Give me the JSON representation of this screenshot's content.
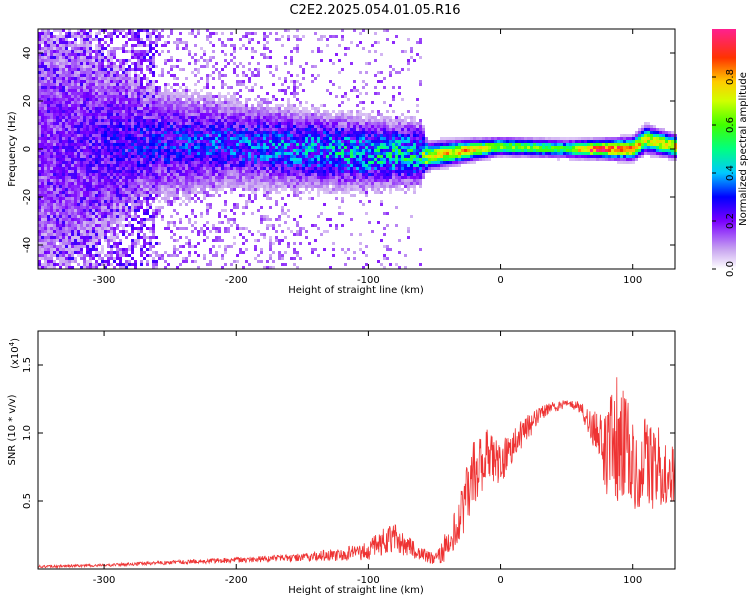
{
  "title": "C2E2.2025.054.01.05.R16",
  "chart_data": [
    {
      "type": "heatmap",
      "xlabel": "Height of straight line (km)",
      "ylabel": "Frequency (Hz)",
      "xlim": [
        -350,
        132
      ],
      "ylim": [
        -50,
        50
      ],
      "xticks": [
        -300,
        -200,
        -100,
        0,
        100
      ],
      "yticks": [
        -40,
        -20,
        0,
        20,
        40
      ],
      "colorbar": {
        "label": "Normalized spectral amplitude",
        "range": [
          0,
          1
        ],
        "ticks": [
          0.0,
          0.2,
          0.4,
          0.6,
          0.8
        ]
      },
      "ridge": [
        {
          "x": -350,
          "freq": 0,
          "amp": 0.15,
          "spread_hz": 40
        },
        {
          "x": -270,
          "freq": 2,
          "amp": 0.25,
          "spread_hz": 14
        },
        {
          "x": -200,
          "freq": 2,
          "amp": 0.3,
          "spread_hz": 10
        },
        {
          "x": -150,
          "freq": 0,
          "amp": 0.35,
          "spread_hz": 9
        },
        {
          "x": -100,
          "freq": -2,
          "amp": 0.4,
          "spread_hz": 8
        },
        {
          "x": -60,
          "freq": -2,
          "amp": 0.45,
          "spread_hz": 7
        },
        {
          "x": -55,
          "freq": -3,
          "amp": 0.7,
          "spread_hz": 3
        },
        {
          "x": -30,
          "freq": -1,
          "amp": 0.8,
          "spread_hz": 2.5
        },
        {
          "x": 0,
          "freq": 1,
          "amp": 0.65,
          "spread_hz": 2
        },
        {
          "x": 50,
          "freq": 0,
          "amp": 0.55,
          "spread_hz": 2
        },
        {
          "x": 70,
          "freq": 0,
          "amp": 0.95,
          "spread_hz": 2
        },
        {
          "x": 100,
          "freq": 0,
          "amp": 0.85,
          "spread_hz": 2.5
        },
        {
          "x": 110,
          "freq": 4,
          "amp": 0.7,
          "spread_hz": 3
        },
        {
          "x": 132,
          "freq": 1,
          "amp": 0.8,
          "spread_hz": 2.5
        }
      ]
    },
    {
      "type": "line",
      "xlabel": "Height of straight line (km)",
      "ylabel": "SNR (10 * v/v)",
      "scale_label": "(x10",
      "scale_exponent": "4",
      "scale_suffix": ")",
      "xlim": [
        -350,
        132
      ],
      "ylim": [
        0,
        1.75
      ],
      "xticks": [
        -300,
        -200,
        -100,
        0,
        100
      ],
      "yticks": [
        0.5,
        1.0,
        1.5
      ],
      "series": [
        {
          "color": "#ee3333",
          "x": [
            -350,
            -300,
            -250,
            -200,
            -150,
            -120,
            -100,
            -90,
            -80,
            -70,
            -60,
            -50,
            -40,
            -30,
            -20,
            -10,
            0,
            10,
            20,
            30,
            40,
            50,
            60,
            70,
            80,
            85,
            90,
            100,
            110,
            120,
            132
          ],
          "y": [
            0.02,
            0.03,
            0.05,
            0.07,
            0.09,
            0.12,
            0.15,
            0.22,
            0.25,
            0.18,
            0.12,
            0.08,
            0.2,
            0.45,
            0.75,
            0.88,
            0.8,
            0.95,
            1.05,
            1.15,
            1.2,
            1.22,
            1.2,
            1.05,
            0.95,
            1.1,
            1.05,
            0.9,
            0.85,
            0.8,
            0.72
          ],
          "noise": [
            0.01,
            0.01,
            0.015,
            0.02,
            0.03,
            0.05,
            0.07,
            0.1,
            0.1,
            0.08,
            0.05,
            0.04,
            0.12,
            0.2,
            0.25,
            0.2,
            0.15,
            0.12,
            0.1,
            0.06,
            0.04,
            0.03,
            0.04,
            0.12,
            0.35,
            0.6,
            0.45,
            0.4,
            0.35,
            0.3,
            0.2
          ]
        }
      ]
    }
  ]
}
